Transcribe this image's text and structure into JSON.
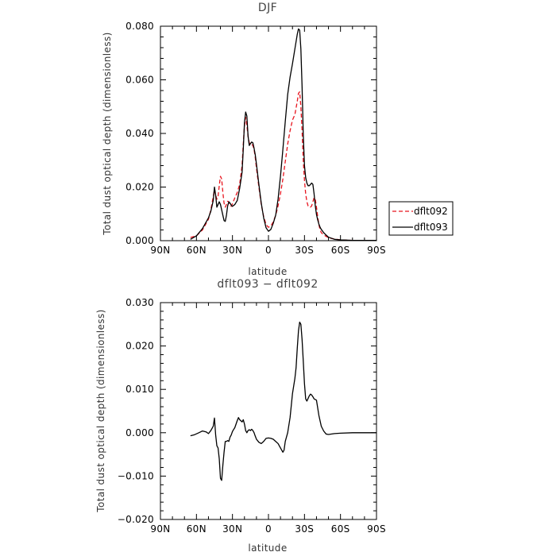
{
  "chart_data": [
    {
      "type": "line",
      "title": "DJF",
      "xlabel": "latitude",
      "ylabel": "Total dust optical depth (dimensionless)",
      "xlim": [
        90,
        -90
      ],
      "ylim": [
        0,
        0.08
      ],
      "xticks": [
        90,
        60,
        30,
        0,
        -30,
        -60,
        -90
      ],
      "xtick_labels": [
        "90N",
        "60N",
        "30N",
        "0",
        "30S",
        "60S",
        "90S"
      ],
      "yticks": [
        0,
        0.02,
        0.04,
        0.06,
        0.08
      ],
      "ytick_labels": [
        "0.000",
        "0.020",
        "0.040",
        "0.060",
        "0.080"
      ],
      "legend_position": "right",
      "series": [
        {
          "name": "dflt092",
          "color": "#e8141e",
          "dash": "dashed",
          "x": [
            65,
            60,
            55,
            50,
            48,
            46,
            45,
            44,
            43,
            42,
            41,
            40,
            39,
            38,
            37,
            36,
            35,
            34,
            33,
            32,
            31,
            30,
            28,
            26,
            24,
            22,
            21,
            20,
            19,
            18,
            17,
            16,
            15,
            14,
            13,
            12,
            11,
            10,
            8,
            6,
            4,
            2,
            0,
            -2,
            -4,
            -6,
            -8,
            -10,
            -12,
            -14,
            -16,
            -18,
            -20,
            -22,
            -24,
            -25,
            -26,
            -27,
            -28,
            -29,
            -30,
            -31,
            -32,
            -33,
            -34,
            -35,
            -36,
            -37,
            -38,
            -39,
            -40,
            -41,
            -42,
            -43,
            -44,
            -46,
            -48,
            -50,
            -55,
            -60,
            -65,
            -70,
            -75,
            -80,
            -85,
            -90
          ],
          "values": [
            0.0012,
            0.0018,
            0.004,
            0.008,
            0.0115,
            0.0165,
            0.019,
            0.017,
            0.0155,
            0.0165,
            0.0205,
            0.024,
            0.023,
            0.018,
            0.014,
            0.0125,
            0.0135,
            0.0147,
            0.0145,
            0.0133,
            0.0128,
            0.0138,
            0.016,
            0.018,
            0.021,
            0.028,
            0.036,
            0.043,
            0.046,
            0.043,
            0.039,
            0.0365,
            0.036,
            0.036,
            0.0355,
            0.034,
            0.031,
            0.027,
            0.02,
            0.0135,
            0.009,
            0.006,
            0.005,
            0.0055,
            0.007,
            0.0095,
            0.013,
            0.0175,
            0.023,
            0.0295,
            0.036,
            0.041,
            0.045,
            0.047,
            0.052,
            0.055,
            0.0555,
            0.05,
            0.041,
            0.03,
            0.0225,
            0.0175,
            0.0145,
            0.013,
            0.0125,
            0.0125,
            0.013,
            0.0145,
            0.016,
            0.0155,
            0.0125,
            0.009,
            0.006,
            0.004,
            0.003,
            0.0022,
            0.0016,
            0.0011,
            0.0006,
            0.0003,
            0.0002,
            0.0001,
            0.0001,
            0.0001,
            0.0001,
            0.0001
          ]
        },
        {
          "name": "dflt093",
          "color": "#000000",
          "dash": "solid",
          "x": [
            65,
            60,
            55,
            50,
            48,
            46,
            45,
            44,
            43,
            42,
            41,
            40,
            39,
            38,
            37,
            36,
            35,
            34,
            33,
            32,
            31,
            30,
            28,
            26,
            24,
            22,
            21,
            20,
            19,
            18,
            17,
            16,
            15,
            14,
            13,
            12,
            11,
            10,
            8,
            6,
            4,
            2,
            0,
            -2,
            -4,
            -6,
            -8,
            -10,
            -12,
            -14,
            -16,
            -18,
            -20,
            -22,
            -24,
            -25,
            -26,
            -27,
            -28,
            -29,
            -30,
            -31,
            -32,
            -33,
            -34,
            -35,
            -36,
            -37,
            -38,
            -39,
            -40,
            -41,
            -42,
            -43,
            -44,
            -46,
            -48,
            -50,
            -55,
            -60,
            -65,
            -70,
            -75,
            -80,
            -85,
            -90
          ],
          "values": [
            0.0005,
            0.0018,
            0.0045,
            0.0085,
            0.011,
            0.015,
            0.02,
            0.017,
            0.0125,
            0.0135,
            0.0145,
            0.0135,
            0.0115,
            0.0095,
            0.0075,
            0.0072,
            0.0095,
            0.013,
            0.0145,
            0.014,
            0.0132,
            0.0128,
            0.0135,
            0.015,
            0.0195,
            0.0255,
            0.034,
            0.044,
            0.048,
            0.0465,
            0.039,
            0.0355,
            0.0362,
            0.0368,
            0.0365,
            0.0345,
            0.032,
            0.0285,
            0.021,
            0.014,
            0.0085,
            0.0048,
            0.0035,
            0.0042,
            0.0065,
            0.0095,
            0.0155,
            0.024,
            0.034,
            0.0445,
            0.0545,
            0.061,
            0.066,
            0.0715,
            0.077,
            0.079,
            0.0785,
            0.0715,
            0.0575,
            0.0395,
            0.028,
            0.0235,
            0.0215,
            0.0205,
            0.0205,
            0.021,
            0.0215,
            0.021,
            0.0175,
            0.013,
            0.0098,
            0.0078,
            0.0062,
            0.005,
            0.0042,
            0.003,
            0.0021,
            0.0013,
            0.0005,
            0.0003,
            0.0002,
            0.0001,
            0.0001,
            0.0001,
            0.0001,
            0.0001
          ]
        }
      ]
    },
    {
      "type": "line",
      "title": "dflt093 − dflt092",
      "xlabel": "latitude",
      "ylabel": "Total dust optical depth (dimensionless)",
      "xlim": [
        90,
        -90
      ],
      "ylim": [
        -0.02,
        0.03
      ],
      "xticks": [
        90,
        60,
        30,
        0,
        -30,
        -60,
        -90
      ],
      "xtick_labels": [
        "90N",
        "60N",
        "30N",
        "0",
        "30S",
        "60S",
        "90S"
      ],
      "yticks": [
        -0.02,
        -0.01,
        0,
        0.01,
        0.02,
        0.03
      ],
      "ytick_labels": [
        "−0.020",
        "−0.010",
        "0.000",
        "0.010",
        "0.020",
        "0.030"
      ],
      "series": [
        {
          "color": "#000000",
          "dash": "solid",
          "x": [
            65,
            62,
            58,
            55,
            52,
            50,
            48,
            46,
            45,
            44,
            43,
            42,
            41,
            40,
            39,
            38,
            37,
            36,
            35,
            34,
            33,
            32,
            31,
            30,
            28,
            27,
            26,
            25,
            24,
            22,
            21,
            20,
            19,
            18,
            17,
            16,
            15,
            14,
            13,
            12,
            11,
            10,
            8,
            6,
            4,
            2,
            0,
            -2,
            -4,
            -6,
            -8,
            -10,
            -12,
            -13,
            -14,
            -16,
            -18,
            -20,
            -22,
            -23,
            -24,
            -25,
            -26,
            -27,
            -28,
            -29,
            -30,
            -31,
            -32,
            -33,
            -34,
            -35,
            -36,
            -37,
            -38,
            -40,
            -42,
            -44,
            -46,
            -48,
            -50,
            -55,
            -60,
            -70,
            -80,
            -90
          ],
          "values": [
            -0.0007,
            -0.0005,
            0.0,
            0.0004,
            0.0002,
            -0.0002,
            0.0005,
            0.0015,
            0.0034,
            -0.0005,
            -0.003,
            -0.0035,
            -0.006,
            -0.0105,
            -0.011,
            -0.0075,
            -0.0045,
            -0.002,
            -0.002,
            -0.0018,
            -0.002,
            -0.001,
            -0.0005,
            0.0003,
            0.0012,
            0.002,
            0.0028,
            0.0035,
            0.003,
            0.0025,
            0.003,
            0.002,
            0.0005,
            0.0,
            0.0005,
            0.0007,
            0.0005,
            0.0008,
            0.0005,
            0.0,
            -0.0008,
            -0.0015,
            -0.0022,
            -0.0025,
            -0.002,
            -0.0013,
            -0.0012,
            -0.0013,
            -0.0015,
            -0.002,
            -0.0025,
            -0.0035,
            -0.0045,
            -0.004,
            -0.002,
            0.0,
            0.0035,
            0.009,
            0.0125,
            0.015,
            0.0195,
            0.0235,
            0.0255,
            0.025,
            0.0215,
            0.0165,
            0.0113,
            0.0078,
            0.0073,
            0.0079,
            0.0085,
            0.0089,
            0.0087,
            0.0083,
            0.0078,
            0.0075,
            0.004,
            0.0015,
            0.0004,
            -0.0003,
            -0.0004,
            -0.0002,
            -0.0001,
            0.0,
            0.0,
            0.0
          ]
        }
      ]
    }
  ],
  "legend": {
    "items": [
      {
        "label": "dflt092",
        "color": "#e8141e",
        "dash": "dashed"
      },
      {
        "label": "dflt093",
        "color": "#000000",
        "dash": "solid"
      }
    ]
  }
}
